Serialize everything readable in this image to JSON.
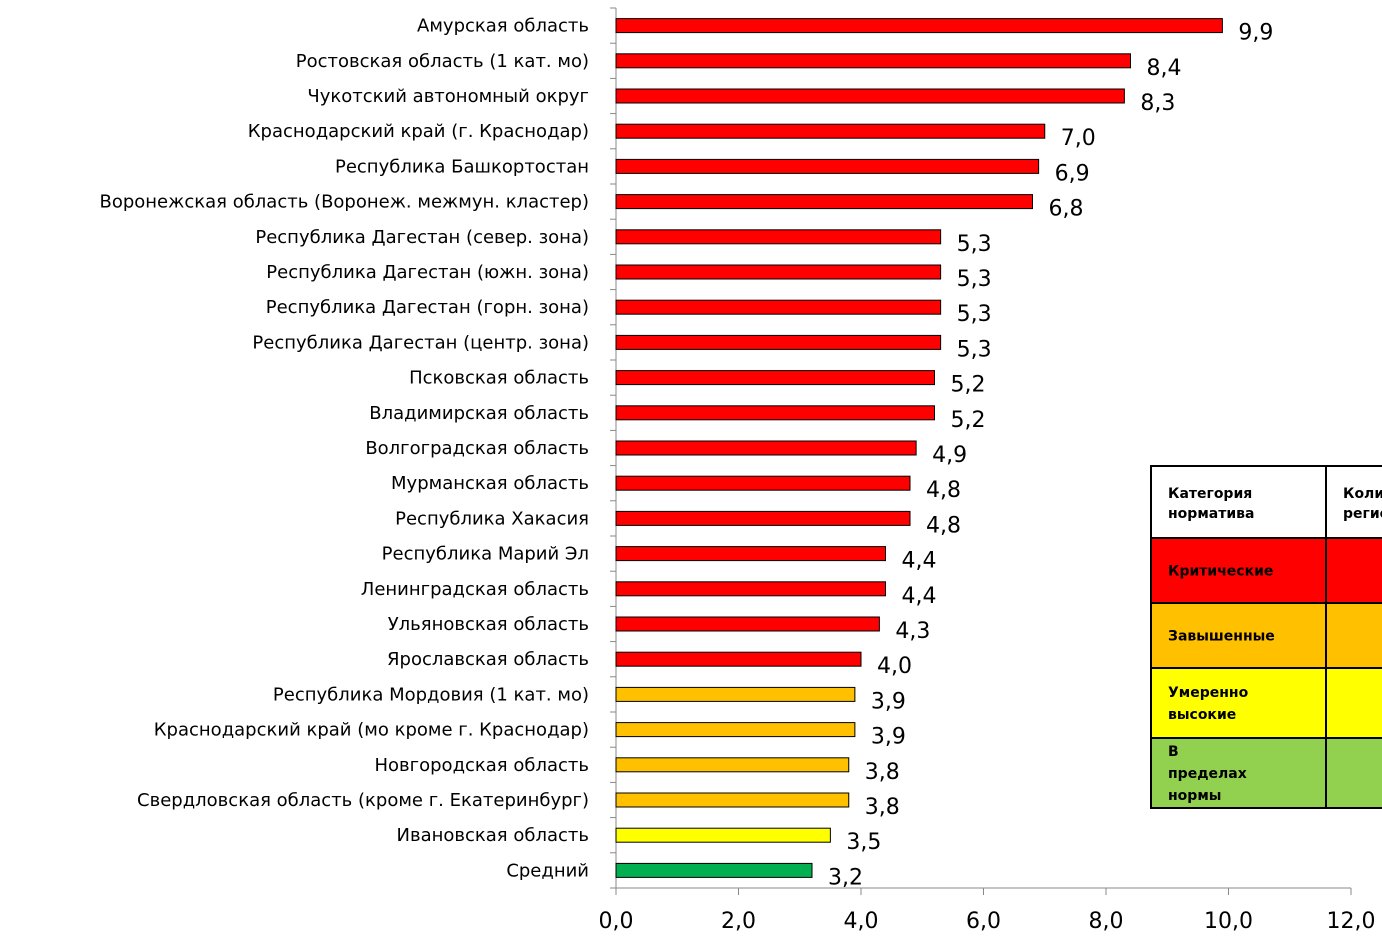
{
  "chart_data": {
    "type": "bar",
    "orientation": "horizontal",
    "categories": [
      "Амурская область",
      "Ростовская область (1 кат. мо)",
      "Чукотский автономный округ",
      "Краснодарский край (г. Краснодар)",
      "Республика Башкортостан",
      "Воронежская область (Воронеж. межмун. кластер)",
      "Республика Дагестан (север. зона)",
      "Республика Дагестан (южн. зона)",
      "Республика Дагестан (горн. зона)",
      "Республика Дагестан (центр. зона)",
      "Псковская область",
      "Владимирская область",
      "Волгоградская область",
      "Мурманская область",
      "Республика Хакасия",
      "Республика Марий Эл",
      "Ленинградская область",
      "Ульяновская область",
      "Ярославская область",
      "Республика Мордовия (1 кат. мо)",
      "Краснодарский край (мо кроме г. Краснодар)",
      "Новгородская область",
      "Свердловская область (кроме г. Екатеринбург)",
      "Ивановская область",
      "Средний"
    ],
    "values": [
      9.9,
      8.4,
      8.3,
      7.0,
      6.9,
      6.8,
      5.3,
      5.3,
      5.3,
      5.3,
      5.2,
      5.2,
      4.9,
      4.8,
      4.8,
      4.4,
      4.4,
      4.3,
      4.0,
      3.9,
      3.9,
      3.8,
      3.8,
      3.5,
      3.2
    ],
    "value_labels": [
      "9,9",
      "8,4",
      "8,3",
      "7,0",
      "6,9",
      "6,8",
      "5,3",
      "5,3",
      "5,3",
      "5,3",
      "5,2",
      "5,2",
      "4,9",
      "4,8",
      "4,8",
      "4,4",
      "4,4",
      "4,3",
      "4,0",
      "3,9",
      "3,9",
      "3,8",
      "3,8",
      "3,5",
      "3,2"
    ],
    "colors": [
      "#ff0000",
      "#ff0000",
      "#ff0000",
      "#ff0000",
      "#ff0000",
      "#ff0000",
      "#ff0000",
      "#ff0000",
      "#ff0000",
      "#ff0000",
      "#ff0000",
      "#ff0000",
      "#ff0000",
      "#ff0000",
      "#ff0000",
      "#ff0000",
      "#ff0000",
      "#ff0000",
      "#ff0000",
      "#ffc000",
      "#ffc000",
      "#ffc000",
      "#ffc000",
      "#ffff00",
      "#00b050"
    ],
    "xlim": [
      0,
      12
    ],
    "xticks": [
      {
        "value": 0,
        "label": "0,0"
      },
      {
        "value": 2,
        "label": "2,0"
      },
      {
        "value": 4,
        "label": "4,0"
      },
      {
        "value": 6,
        "label": "6,0"
      },
      {
        "value": 8,
        "label": "8,0"
      },
      {
        "value": 10,
        "label": "10,0"
      },
      {
        "value": 12,
        "label": "12,0"
      }
    ]
  },
  "legend_table": {
    "header": [
      "Категория норматива",
      "Количество регионов"
    ],
    "rows": [
      {
        "label": "Критические",
        "color": "#ff0000"
      },
      {
        "label": "Завышенные",
        "color": "#ffc000"
      },
      {
        "label": "Умеренно высокие",
        "color": "#ffff00"
      },
      {
        "label": "В пределах нормы",
        "color": "#92d050"
      }
    ]
  }
}
